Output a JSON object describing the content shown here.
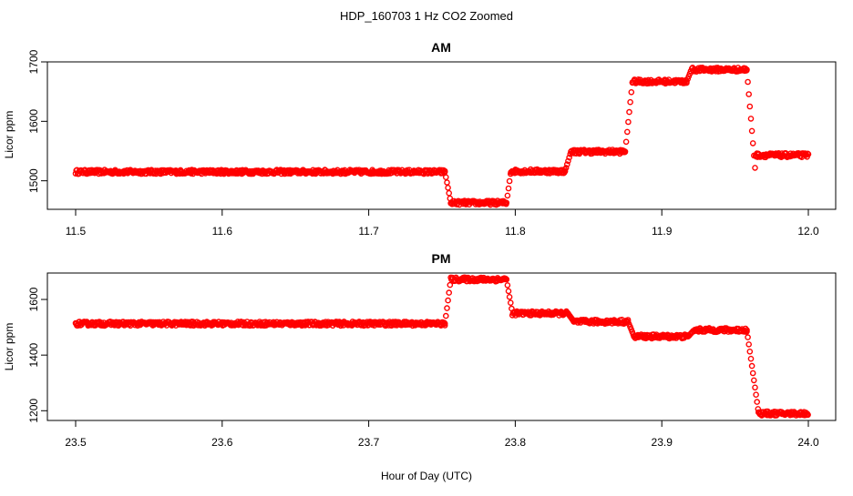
{
  "figure": {
    "title": "HDP_160703  1 Hz CO2 Zoomed",
    "xlabel": "Hour of Day (UTC)"
  },
  "chart_data": [
    {
      "type": "scatter",
      "title": "AM",
      "ylabel": "Licor ppm",
      "xlim": [
        11.5,
        12.0
      ],
      "ylim": [
        1452,
        1700
      ],
      "xticks": [
        "11.5",
        "11.6",
        "11.7",
        "11.8",
        "11.9",
        "12.0"
      ],
      "yticks": [
        "1500",
        "1600",
        "1700"
      ],
      "marker_color": "#ff0000",
      "segments": [
        {
          "x_start": 11.5,
          "x_end": 11.752,
          "value": 1515
        },
        {
          "x_start": 11.752,
          "x_end": 11.756,
          "from": 1515,
          "to": 1464
        },
        {
          "x_start": 11.756,
          "x_end": 11.794,
          "value": 1463
        },
        {
          "x_start": 11.794,
          "x_end": 11.797,
          "from": 1463,
          "to": 1515
        },
        {
          "x_start": 11.797,
          "x_end": 11.834,
          "value": 1516
        },
        {
          "x_start": 11.834,
          "x_end": 11.838,
          "from": 1516,
          "to": 1549
        },
        {
          "x_start": 11.838,
          "x_end": 11.875,
          "value": 1549
        },
        {
          "x_start": 11.875,
          "x_end": 11.88,
          "from": 1549,
          "to": 1668
        },
        {
          "x_start": 11.88,
          "x_end": 11.917,
          "value": 1667
        },
        {
          "x_start": 11.917,
          "x_end": 11.921,
          "from": 1667,
          "to": 1692
        },
        {
          "x_start": 11.921,
          "x_end": 11.958,
          "value": 1687
        },
        {
          "x_start": 11.958,
          "x_end": 11.964,
          "from": 1687,
          "to": 1510
        },
        {
          "x_start": 11.964,
          "x_end": 12.0,
          "value": 1543
        }
      ]
    },
    {
      "type": "scatter",
      "title": "PM",
      "ylabel": "Licor ppm",
      "xlim": [
        23.5,
        24.0
      ],
      "ylim": [
        1165,
        1695
      ],
      "xticks": [
        "23.5",
        "23.6",
        "23.7",
        "23.8",
        "23.9",
        "24.0"
      ],
      "yticks": [
        "1200",
        "1400",
        "1600"
      ],
      "marker_color": "#ff0000",
      "segments": [
        {
          "x_start": 23.5,
          "x_end": 23.752,
          "value": 1513
        },
        {
          "x_start": 23.752,
          "x_end": 23.756,
          "from": 1513,
          "to": 1672
        },
        {
          "x_start": 23.756,
          "x_end": 23.794,
          "value": 1672
        },
        {
          "x_start": 23.794,
          "x_end": 23.798,
          "from": 1672,
          "to": 1552
        },
        {
          "x_start": 23.798,
          "x_end": 23.836,
          "value": 1550
        },
        {
          "x_start": 23.836,
          "x_end": 23.84,
          "from": 1550,
          "to": 1520
        },
        {
          "x_start": 23.84,
          "x_end": 23.877,
          "value": 1520
        },
        {
          "x_start": 23.877,
          "x_end": 23.881,
          "from": 1520,
          "to": 1468
        },
        {
          "x_start": 23.881,
          "x_end": 23.918,
          "value": 1467
        },
        {
          "x_start": 23.918,
          "x_end": 23.922,
          "from": 1467,
          "to": 1490
        },
        {
          "x_start": 23.922,
          "x_end": 23.958,
          "value": 1490
        },
        {
          "x_start": 23.958,
          "x_end": 23.966,
          "from": 1490,
          "to": 1195
        },
        {
          "x_start": 23.966,
          "x_end": 24.0,
          "value": 1190
        }
      ]
    }
  ]
}
